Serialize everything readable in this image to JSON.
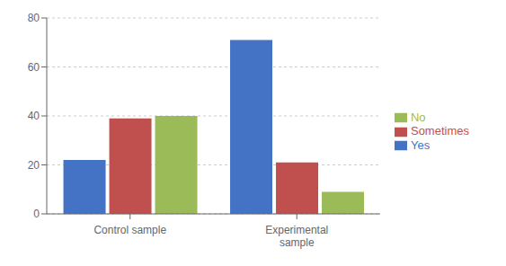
{
  "chart_data": {
    "type": "bar",
    "categories": [
      "Control sample",
      "Experimental\nsample"
    ],
    "series": [
      {
        "name": "Yes",
        "color": "#4472C4",
        "values": [
          22,
          71
        ]
      },
      {
        "name": "Sometimes",
        "color": "#C0504D",
        "values": [
          39,
          21
        ]
      },
      {
        "name": "No",
        "color": "#9BBB59",
        "values": [
          40,
          9
        ]
      }
    ],
    "ylim": [
      0,
      80
    ],
    "yticks": [
      0,
      20,
      40,
      60,
      80
    ],
    "grid": true,
    "legend": "right"
  }
}
